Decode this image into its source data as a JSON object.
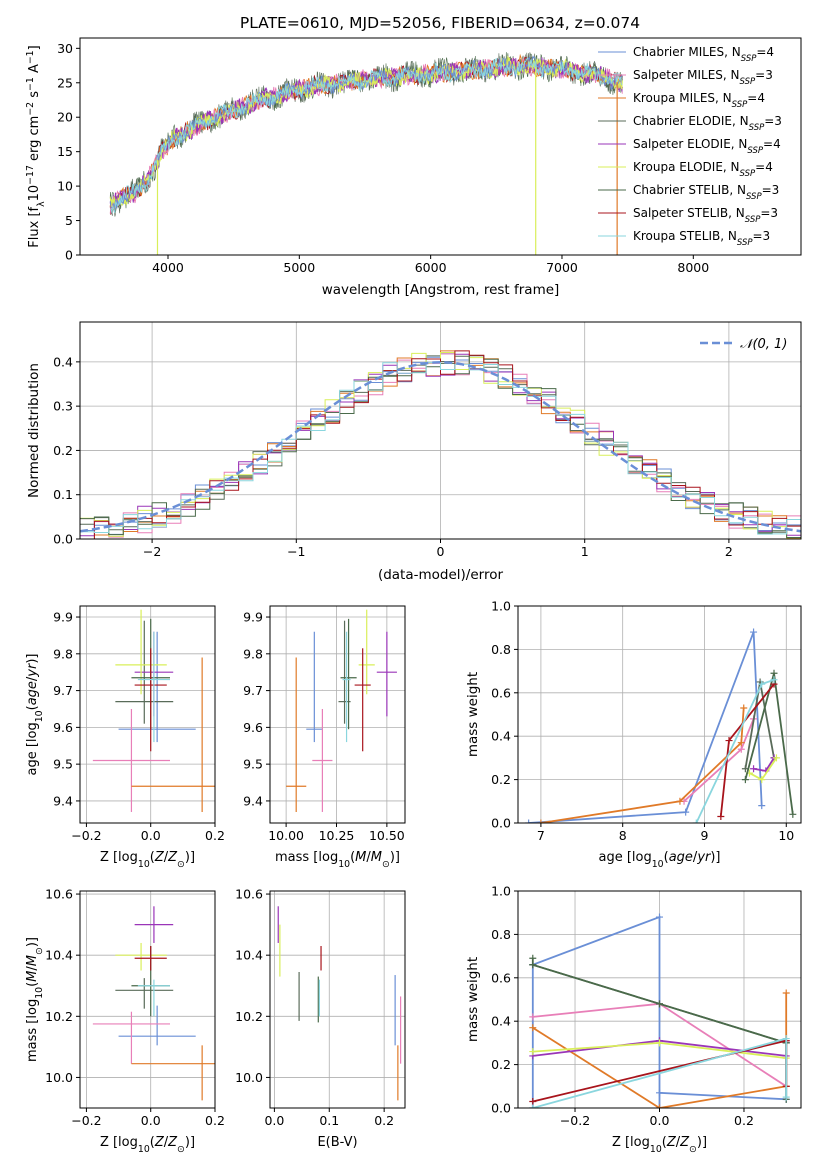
{
  "figure_title": "PLATE=0610, MJD=52056, FIBERID=0634, z=0.074",
  "colors": {
    "Chabrier MILES": "#6a8fd6",
    "Salpeter MILES": "#e87fb8",
    "Kroupa MILES": "#e07a28",
    "Chabrier ELODIE": "#596b59",
    "Salpeter ELODIE": "#9a35b8",
    "Kroupa ELODIE": "#d9ef5a",
    "Chabrier STELIB": "#4a6a4a",
    "Salpeter STELIB": "#a8141c",
    "Kroupa STELIB": "#8ad6de"
  },
  "legend_spectrum": [
    {
      "model": "Chabrier MILES",
      "pre": "Chabrier MILES, N",
      "n": "4"
    },
    {
      "model": "Salpeter MILES",
      "pre": "Salpeter MILES, N",
      "n": "3"
    },
    {
      "model": "Kroupa MILES",
      "pre": "Kroupa MILES, N",
      "n": "4"
    },
    {
      "model": "Chabrier ELODIE",
      "pre": "Chabrier ELODIE, N",
      "n": "3"
    },
    {
      "model": "Salpeter ELODIE",
      "pre": "Salpeter ELODIE, N",
      "n": "4"
    },
    {
      "model": "Kroupa ELODIE",
      "pre": "Kroupa ELODIE, N",
      "n": "4"
    },
    {
      "model": "Chabrier STELIB",
      "pre": "Chabrier STELIB, N",
      "n": "3"
    },
    {
      "model": "Salpeter STELIB",
      "pre": "Salpeter STELIB, N",
      "n": "3"
    },
    {
      "model": "Kroupa STELIB",
      "pre": "Kroupa STELIB, N",
      "n": "3"
    }
  ],
  "ssp_sub": "SSP",
  "ssp_eq": "=",
  "chart_data": [
    {
      "id": "spectrum",
      "type": "line",
      "xlabel": "wavelength [Angstrom, rest frame]",
      "ylabel": "Flux [f",
      "ylabel_full": "Flux [fλ10⁻¹⁷ erg cm⁻² s⁻¹ A⁻¹]",
      "xlim": [
        3330,
        8820
      ],
      "ylim": [
        0,
        31.5
      ],
      "xticks": [
        4000,
        5000,
        6000,
        7000,
        8000
      ],
      "yticks": [
        0,
        5,
        10,
        15,
        20,
        25,
        30
      ],
      "continuum": {
        "x": [
          3560,
          3650,
          3750,
          3850,
          3950,
          4050,
          4150,
          4300,
          4500,
          4700,
          4900,
          5100,
          5300,
          5500,
          5800,
          6100,
          6400,
          6700,
          7000,
          7300,
          7500
        ],
        "y": [
          7,
          8.5,
          9,
          11,
          15,
          17,
          18,
          19.5,
          21,
          22.5,
          23.5,
          24.5,
          25,
          25.5,
          26,
          26.5,
          27,
          27.5,
          27,
          26,
          24.5
        ]
      },
      "data_range": [
        3560,
        7460
      ],
      "dropouts": [
        {
          "model": "Kroupa ELODIE",
          "x": 3920
        },
        {
          "model": "Kroupa ELODIE",
          "x": 6800
        },
        {
          "model": "Kroupa MILES",
          "x": 7420
        }
      ],
      "grid": false
    },
    {
      "id": "residuals",
      "type": "line",
      "xlabel": "(data-model)/error",
      "ylabel": "Normed distribution",
      "xlim": [
        -2.5,
        2.5
      ],
      "ylim": [
        0,
        0.49
      ],
      "xticks": [
        -2,
        -1,
        0,
        1,
        2
      ],
      "yticks": [
        0.0,
        0.1,
        0.2,
        0.3,
        0.4
      ],
      "bin_width": 0.1,
      "legend": [
        {
          "label": "𝒩(0, 1)",
          "style": "dashed",
          "color": "#6a8fd6"
        }
      ],
      "legend_loc": "upper right",
      "grid": true
    },
    {
      "id": "Z_vs_age",
      "type": "errorbar",
      "xlabel": "Z [log10(Z/Z⊙)]",
      "ylabel": "age [log10(age/yr)]",
      "xlim": [
        -0.22,
        0.2
      ],
      "ylim": [
        9.34,
        9.93
      ],
      "xticks": [
        -0.2,
        0.0,
        0.2
      ],
      "yticks": [
        9.4,
        9.5,
        9.6,
        9.7,
        9.8,
        9.9
      ],
      "points": [
        {
          "model": "Chabrier MILES",
          "x": 0.02,
          "y": 9.595,
          "xerr": 0.12,
          "yerr": [
            0.035,
            0.265
          ]
        },
        {
          "model": "Salpeter MILES",
          "x": -0.06,
          "y": 9.51,
          "xerr": 0.12,
          "yerr": [
            0.14,
            0.14
          ]
        },
        {
          "model": "Kroupa MILES",
          "x": 0.16,
          "y": 9.44,
          "xerr": 0.22,
          "yerr": [
            0.07,
            0.35
          ]
        },
        {
          "model": "Chabrier ELODIE",
          "x": -0.02,
          "y": 9.67,
          "xerr": 0.09,
          "yerr": [
            0.06,
            0.22
          ]
        },
        {
          "model": "Salpeter ELODIE",
          "x": 0.01,
          "y": 9.75,
          "xerr": 0.06,
          "yerr": [
            0.12,
            0.11
          ]
        },
        {
          "model": "Kroupa ELODIE",
          "x": -0.03,
          "y": 9.77,
          "xerr": 0.08,
          "yerr": [
            0.08,
            0.15
          ]
        },
        {
          "model": "Chabrier STELIB",
          "x": 0.0,
          "y": 9.735,
          "xerr": 0.06,
          "yerr": [
            0.14,
            0.16
          ]
        },
        {
          "model": "Salpeter STELIB",
          "x": 0.0,
          "y": 9.715,
          "xerr": 0.05,
          "yerr": [
            0.18,
            0.1
          ]
        },
        {
          "model": "Kroupa STELIB",
          "x": 0.01,
          "y": 9.73,
          "xerr": 0.05,
          "yerr": [
            0.17,
            0.13
          ]
        }
      ],
      "grid": true
    },
    {
      "id": "mass_vs_age",
      "type": "errorbar",
      "xlabel": "mass [log10(M/M⊙)]",
      "ylabel": "",
      "xlim": [
        9.92,
        10.59
      ],
      "ylim": [
        9.34,
        9.93
      ],
      "xticks": [
        10.0,
        10.25,
        10.5
      ],
      "yticks": [
        9.4,
        9.5,
        9.6,
        9.7,
        9.8,
        9.9
      ],
      "points": [
        {
          "model": "Chabrier MILES",
          "x": 10.14,
          "y": 9.595,
          "xerr": 0.04,
          "yerr": [
            0.035,
            0.265
          ]
        },
        {
          "model": "Salpeter MILES",
          "x": 10.18,
          "y": 9.51,
          "xerr": 0.05,
          "yerr": [
            0.14,
            0.14
          ]
        },
        {
          "model": "Kroupa MILES",
          "x": 10.05,
          "y": 9.44,
          "xerr": 0.05,
          "yerr": [
            0.07,
            0.35
          ]
        },
        {
          "model": "Chabrier ELODIE",
          "x": 10.29,
          "y": 9.67,
          "xerr": 0.03,
          "yerr": [
            0.06,
            0.22
          ]
        },
        {
          "model": "Salpeter ELODIE",
          "x": 10.5,
          "y": 9.75,
          "xerr": 0.05,
          "yerr": [
            0.12,
            0.11
          ]
        },
        {
          "model": "Kroupa ELODIE",
          "x": 10.4,
          "y": 9.77,
          "xerr": 0.04,
          "yerr": [
            0.08,
            0.15
          ]
        },
        {
          "model": "Chabrier STELIB",
          "x": 10.31,
          "y": 9.735,
          "xerr": 0.04,
          "yerr": [
            0.14,
            0.16
          ]
        },
        {
          "model": "Salpeter STELIB",
          "x": 10.38,
          "y": 9.715,
          "xerr": 0.04,
          "yerr": [
            0.18,
            0.1
          ]
        },
        {
          "model": "Kroupa STELIB",
          "x": 10.3,
          "y": 9.73,
          "xerr": 0.02,
          "yerr": [
            0.17,
            0.13
          ]
        }
      ],
      "grid": true
    },
    {
      "id": "age_vs_weight",
      "type": "line",
      "xlabel": "age [log10(age/yr)]",
      "ylabel": "mass weight",
      "xlim": [
        6.72,
        10.18
      ],
      "ylim": [
        0,
        1.0
      ],
      "xticks": [
        7,
        8,
        9,
        10
      ],
      "yticks": [
        0.0,
        0.2,
        0.4,
        0.6,
        0.8,
        1.0
      ],
      "series": [
        {
          "model": "Chabrier MILES",
          "x": [
            6.85,
            8.77,
            9.6,
            9.7
          ],
          "y": [
            0.0,
            0.05,
            0.88,
            0.08
          ]
        },
        {
          "model": "Salpeter MILES",
          "x": [
            8.75,
            9.45,
            9.6
          ],
          "y": [
            0.1,
            0.34,
            0.48
          ]
        },
        {
          "model": "Kroupa MILES",
          "x": [
            7.0,
            8.7,
            9.45,
            9.48
          ],
          "y": [
            0.0,
            0.1,
            0.37,
            0.53
          ]
        },
        {
          "model": "Chabrier ELODIE",
          "x": [
            9.5,
            9.68,
            9.85
          ],
          "y": [
            0.25,
            0.65,
            0.3
          ]
        },
        {
          "model": "Salpeter ELODIE",
          "x": [
            9.6,
            9.75,
            9.85
          ],
          "y": [
            0.25,
            0.24,
            0.3
          ]
        },
        {
          "model": "Kroupa ELODIE",
          "x": [
            9.55,
            9.7,
            9.88
          ],
          "y": [
            0.23,
            0.2,
            0.3
          ]
        },
        {
          "model": "Chabrier STELIB",
          "x": [
            9.5,
            9.85,
            10.08
          ],
          "y": [
            0.2,
            0.69,
            0.04
          ]
        },
        {
          "model": "Salpeter STELIB",
          "x": [
            9.2,
            9.3,
            9.85
          ],
          "y": [
            0.03,
            0.38,
            0.64
          ]
        },
        {
          "model": "Kroupa STELIB",
          "x": [
            8.9,
            9.7,
            9.85
          ],
          "y": [
            0.0,
            0.64,
            0.66
          ]
        }
      ],
      "grid": true
    },
    {
      "id": "Z_vs_mass",
      "type": "errorbar",
      "xlabel": "Z [log10(Z/Z⊙)]",
      "ylabel": "mass [log10(M/M⊙)]",
      "xlim": [
        -0.22,
        0.2
      ],
      "ylim": [
        9.9,
        10.61
      ],
      "xticks": [
        -0.2,
        0.0,
        0.2
      ],
      "yticks": [
        10.0,
        10.2,
        10.4,
        10.6
      ],
      "points": [
        {
          "model": "Chabrier MILES",
          "x": 0.02,
          "y": 10.135,
          "xerr": 0.12,
          "yerr": [
            0.03,
            0.1
          ]
        },
        {
          "model": "Salpeter MILES",
          "x": -0.06,
          "y": 10.175,
          "xerr": 0.12,
          "yerr": [
            0.13,
            0.04
          ]
        },
        {
          "model": "Kroupa MILES",
          "x": 0.16,
          "y": 10.045,
          "xerr": 0.22,
          "yerr": [
            0.12,
            0.06
          ]
        },
        {
          "model": "Chabrier ELODIE",
          "x": -0.02,
          "y": 10.285,
          "xerr": 0.09,
          "yerr": [
            0.06,
            0.04
          ]
        },
        {
          "model": "Salpeter ELODIE",
          "x": 0.01,
          "y": 10.5,
          "xerr": 0.06,
          "yerr": [
            0.06,
            0.06
          ]
        },
        {
          "model": "Kroupa ELODIE",
          "x": -0.03,
          "y": 10.4,
          "xerr": 0.08,
          "yerr": [
            0.05,
            0.04
          ]
        },
        {
          "model": "Chabrier STELIB",
          "x": 0.0,
          "y": 10.3,
          "xerr": 0.06,
          "yerr": [
            0.1,
            0.13
          ]
        },
        {
          "model": "Salpeter STELIB",
          "x": 0.0,
          "y": 10.39,
          "xerr": 0.05,
          "yerr": [
            0.04,
            0.04
          ]
        },
        {
          "model": "Kroupa STELIB",
          "x": 0.01,
          "y": 10.3,
          "xerr": 0.05,
          "yerr": [
            0.1,
            0.02
          ]
        }
      ],
      "grid": true
    },
    {
      "id": "ebv_vs_mass",
      "type": "errorbar",
      "xlabel": "E(B-V)",
      "ylabel": "",
      "xlim": [
        -0.008,
        0.238
      ],
      "ylim": [
        9.9,
        10.61
      ],
      "xticks": [
        0.0,
        0.1,
        0.2
      ],
      "yticks": [
        10.0,
        10.2,
        10.4,
        10.6
      ],
      "points": [
        {
          "model": "Chabrier MILES",
          "x": 0.22,
          "y": 10.135,
          "xerr": 0.0,
          "yerr": [
            0.03,
            0.2
          ]
        },
        {
          "model": "Salpeter MILES",
          "x": 0.23,
          "y": 10.175,
          "xerr": 0.0,
          "yerr": [
            0.13,
            0.09
          ]
        },
        {
          "model": "Kroupa MILES",
          "x": 0.225,
          "y": 10.045,
          "xerr": 0.0,
          "yerr": [
            0.12,
            0.06
          ]
        },
        {
          "model": "Chabrier ELODIE",
          "x": 0.045,
          "y": 10.285,
          "xerr": 0.0,
          "yerr": [
            0.1,
            0.06
          ]
        },
        {
          "model": "Salpeter ELODIE",
          "x": 0.007,
          "y": 10.5,
          "xerr": 0.0,
          "yerr": [
            0.06,
            0.06
          ]
        },
        {
          "model": "Kroupa ELODIE",
          "x": 0.01,
          "y": 10.4,
          "xerr": 0.0,
          "yerr": [
            0.07,
            0.1
          ]
        },
        {
          "model": "Chabrier STELIB",
          "x": 0.08,
          "y": 10.25,
          "xerr": 0.0,
          "yerr": [
            0.07,
            0.08
          ]
        },
        {
          "model": "Salpeter STELIB",
          "x": 0.085,
          "y": 10.39,
          "xerr": 0.0,
          "yerr": [
            0.04,
            0.04
          ]
        },
        {
          "model": "Kroupa STELIB",
          "x": 0.082,
          "y": 10.28,
          "xerr": 0.0,
          "yerr": [
            0.08,
            0.04
          ]
        }
      ],
      "grid": true
    },
    {
      "id": "Z_vs_weight",
      "type": "line",
      "xlabel": "Z [log10(Z/Z⊙)]",
      "ylabel": "mass weight",
      "xlim": [
        -0.335,
        0.335
      ],
      "ylim": [
        0,
        1.0
      ],
      "xticks": [
        -0.2,
        0.0,
        0.2
      ],
      "yticks": [
        0.0,
        0.2,
        0.4,
        0.6,
        0.8,
        1.0
      ],
      "series": [
        {
          "model": "Chabrier MILES",
          "x": [
            -0.3,
            -0.3,
            0.0,
            0.0,
            0.0,
            0.3,
            0.3
          ],
          "y": [
            0.0,
            0.66,
            0.88,
            0.0,
            0.07,
            0.04,
            0.3
          ]
        },
        {
          "model": "Salpeter MILES",
          "x": [
            -0.3,
            0.0,
            0.3,
            0.3
          ],
          "y": [
            0.42,
            0.48,
            0.1,
            0.31
          ]
        },
        {
          "model": "Kroupa MILES",
          "x": [
            -0.3,
            0.0,
            0.3,
            0.3
          ],
          "y": [
            0.37,
            0.0,
            0.1,
            0.53
          ]
        },
        {
          "model": "Chabrier ELODIE",
          "x": [
            -0.3,
            0.0,
            0.3
          ],
          "y": [
            0.66,
            0.48,
            0.3
          ]
        },
        {
          "model": "Salpeter ELODIE",
          "x": [
            -0.3,
            0.0,
            0.3
          ],
          "y": [
            0.24,
            0.31,
            0.24
          ]
        },
        {
          "model": "Kroupa ELODIE",
          "x": [
            -0.3,
            0.0,
            0.3
          ],
          "y": [
            0.26,
            0.3,
            0.23
          ]
        },
        {
          "model": "Chabrier STELIB",
          "x": [
            -0.3,
            -0.3,
            0.0,
            0.3,
            0.3
          ],
          "y": [
            0.69,
            0.66,
            0.48,
            0.3,
            0.04
          ]
        },
        {
          "model": "Salpeter STELIB",
          "x": [
            -0.3,
            0.3,
            0.3
          ],
          "y": [
            0.03,
            0.31,
            0.1
          ]
        },
        {
          "model": "Kroupa STELIB",
          "x": [
            -0.3,
            0.3,
            0.3
          ],
          "y": [
            0.0,
            0.32,
            0.05
          ]
        }
      ],
      "grid": true
    }
  ]
}
